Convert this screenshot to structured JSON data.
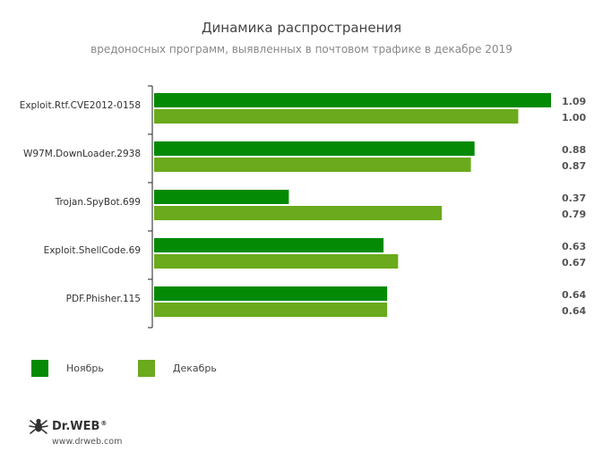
{
  "chart_data": {
    "type": "bar",
    "orientation": "horizontal",
    "title": "Динамика распространения",
    "subtitle": "вредоносных программ, выявленных в почтовом трафике в декабре 2019",
    "categories": [
      "Exploit.Rtf.CVE2012-0158",
      "W97M.DownLoader.2938",
      "Trojan.SpyBot.699",
      "Exploit.ShellCode.69",
      "PDF.Phisher.115"
    ],
    "series": [
      {
        "name": "Ноябрь",
        "values": [
          1.09,
          0.88,
          0.37,
          0.63,
          0.64
        ],
        "labels": [
          "1.09",
          "0.88",
          "0.37",
          "0.63",
          "0.64"
        ],
        "color": "#048a04"
      },
      {
        "name": "Декабрь",
        "values": [
          1.0,
          0.87,
          0.79,
          0.67,
          0.64
        ],
        "labels": [
          "1.00",
          "0.87",
          "0.79",
          "0.67",
          "0.64"
        ],
        "color": "#6aaa1c"
      }
    ],
    "xlim": [
      0,
      1.09
    ],
    "grid": false,
    "legend_position": "bottom-left"
  },
  "brand": {
    "name": "Dr.WEB",
    "url": "www.drweb.com"
  }
}
